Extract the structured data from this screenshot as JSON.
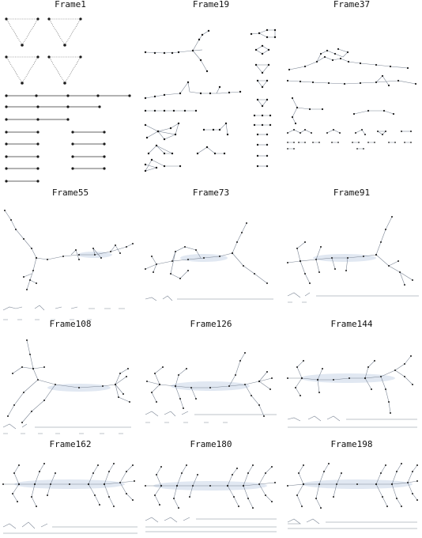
{
  "frames": [
    {
      "label": "Frame1"
    },
    {
      "label": "Frame19"
    },
    {
      "label": "Frame37"
    },
    {
      "label": "Frame55"
    },
    {
      "label": "Frame73"
    },
    {
      "label": "Frame91"
    },
    {
      "label": "Frame108"
    },
    {
      "label": "Frame126"
    },
    {
      "label": "Frame144"
    },
    {
      "label": "Frame162"
    },
    {
      "label": "Frame180"
    },
    {
      "label": "Frame198"
    }
  ],
  "colors": {
    "node": "#1a1a1a",
    "edge": "#7d8796",
    "hub_fill": "#c9d6e8"
  }
}
